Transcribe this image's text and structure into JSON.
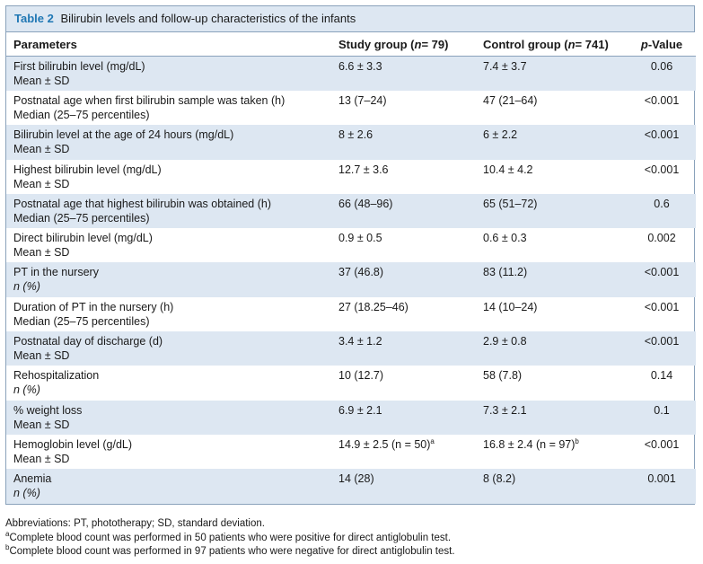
{
  "caption": {
    "label": "Table 2",
    "title": "Bilirubin levels and follow-up characteristics of the infants"
  },
  "headers": {
    "param": "Parameters",
    "study": "Study group (",
    "study_n": "n",
    "study_rest": "= 79)",
    "control": "Control group (",
    "control_n": "n",
    "control_rest": "= 741)",
    "p_ital": "p",
    "p_rest": "-Value"
  },
  "rows": [
    {
      "line1": "First bilirubin level (mg/dL)",
      "line2": "Mean ± SD",
      "study": "6.6 ± 3.3",
      "control": "7.4 ± 3.7",
      "p": "0.06"
    },
    {
      "line1": "Postnatal age when first bilirubin sample was taken (h)",
      "line2": "Median (25–75 percentiles)",
      "study": "13 (7–24)",
      "control": "47 (21–64)",
      "p": "<0.001"
    },
    {
      "line1": "Bilirubin level at the age of 24 hours (mg/dL)",
      "line2": "Mean ± SD",
      "study": "8 ± 2.6",
      "control": "6 ± 2.2",
      "p": "<0.001"
    },
    {
      "line1": "Highest bilirubin level (mg/dL)",
      "line2": "Mean ± SD",
      "study": "12.7 ± 3.6",
      "control": "10.4 ± 4.2",
      "p": "<0.001"
    },
    {
      "line1": "Postnatal age that highest bilirubin was obtained (h)",
      "line2": "Median (25–75 percentiles)",
      "study": "66 (48–96)",
      "control": "65 (51–72)",
      "p": "0.6"
    },
    {
      "line1": "Direct bilirubin level (mg/dL)",
      "line2": "Mean ± SD",
      "study": "0.9 ± 0.5",
      "control": "0.6 ± 0.3",
      "p": "0.002"
    },
    {
      "line1": "PT in the nursery",
      "line2": "n (%)",
      "study": "37 (46.8)",
      "control": "83 (11.2)",
      "p": "<0.001"
    },
    {
      "line1": "Duration of PT in the nursery (h)",
      "line2": "Median (25–75 percentiles)",
      "study": "27 (18.25–46)",
      "control": "14 (10–24)",
      "p": "<0.001"
    },
    {
      "line1": "Postnatal day of discharge (d)",
      "line2": "Mean ± SD",
      "study": "3.4 ± 1.2",
      "control": "2.9 ± 0.8",
      "p": "<0.001"
    },
    {
      "line1": "Rehospitalization",
      "line2": "n (%)",
      "study": "10 (12.7)",
      "control": "58 (7.8)",
      "p": "0.14"
    },
    {
      "line1": "% weight loss",
      "line2": "Mean ± SD",
      "study": "6.9 ± 2.1",
      "control": "7.3 ± 2.1",
      "p": "0.1"
    },
    {
      "line1": "Hemoglobin level (g/dL)",
      "line2": "Mean ± SD",
      "study": "14.9 ± 2.5 (n = 50)",
      "study_sup": "a",
      "control": "16.8 ± 2.4 (n = 97)",
      "control_sup": "b",
      "p": "<0.001"
    },
    {
      "line1": "Anemia",
      "line2": "n (%)",
      "study": "14 (28)",
      "control": "8 (8.2)",
      "p": "0.001"
    }
  ],
  "footnotes": {
    "abbrev": "Abbreviations: PT, phototherapy; SD, standard deviation.",
    "a_mark": "a",
    "a_text": "Complete blood count was performed in 50 patients who were positive for direct antiglobulin test.",
    "b_mark": "b",
    "b_text": "Complete blood count was performed in 97 patients who were negative for direct antiglobulin test."
  }
}
